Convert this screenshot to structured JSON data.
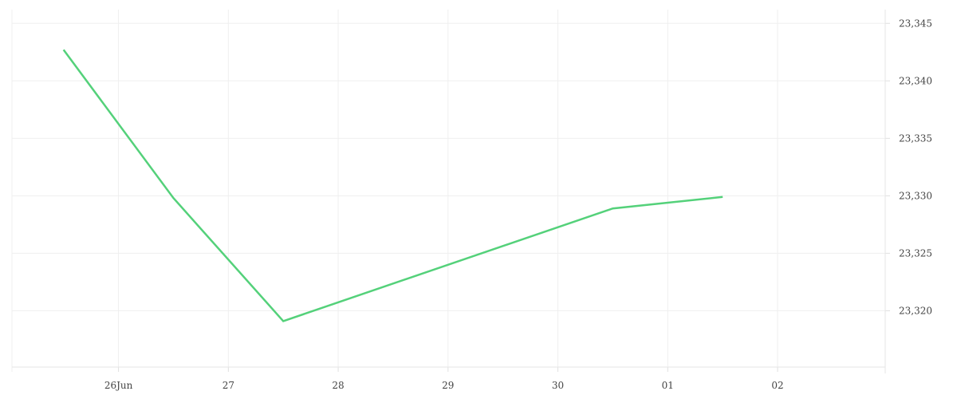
{
  "chart_data": {
    "type": "line",
    "title": "",
    "xlabel": "",
    "ylabel": "",
    "grid": true,
    "x_ticks": [
      {
        "label": "26Jun",
        "day": 26
      },
      {
        "label": "27",
        "day": 27
      },
      {
        "label": "28",
        "day": 28
      },
      {
        "label": "29",
        "day": 29
      },
      {
        "label": "30",
        "day": 30
      },
      {
        "label": "01",
        "day": 31
      },
      {
        "label": "02",
        "day": 32
      }
    ],
    "y_ticks": [
      {
        "label": "23,320",
        "value": 23320
      },
      {
        "label": "23,325",
        "value": 23325
      },
      {
        "label": "23,330",
        "value": 23330
      },
      {
        "label": "23,335",
        "value": 23335
      },
      {
        "label": "23,340",
        "value": 23340
      },
      {
        "label": "23,345",
        "value": 23345
      }
    ],
    "xlim": [
      25.03,
      32.98
    ],
    "ylim": [
      23315.1,
      23346.2
    ],
    "series": [
      {
        "color": "#54d17a",
        "points": [
          {
            "x": 25.5,
            "y": 23342.7
          },
          {
            "x": 26.5,
            "y": 23329.8
          },
          {
            "x": 27.5,
            "y": 23319.1
          },
          {
            "x": 30.5,
            "y": 23328.9
          },
          {
            "x": 31.5,
            "y": 23329.9
          }
        ]
      }
    ]
  }
}
